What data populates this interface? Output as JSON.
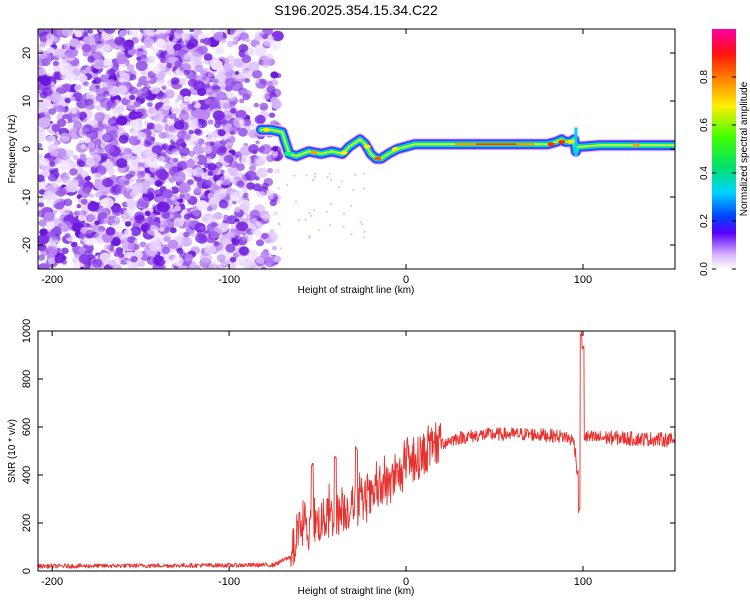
{
  "title": "S196.2025.354.15.34.C22",
  "colors": {
    "snr_line": "#e8302c",
    "spectrogram_noise": "#8a2be2",
    "axis": "#000000",
    "background": "#ffffff"
  },
  "chart_data": [
    {
      "type": "heatmap",
      "name": "spectrogram",
      "xlabel": "Height of straight line (km)",
      "ylabel": "Frequency (Hz)",
      "xlim": [
        -208,
        152
      ],
      "ylim": [
        -25,
        25
      ],
      "xticks": [
        -200,
        -100,
        0,
        100
      ],
      "xtick_labels": [
        "-200",
        "-100",
        "0",
        "100"
      ],
      "yticks": [
        -20,
        -10,
        0,
        10,
        20
      ],
      "ytick_labels": [
        "-20",
        "-10",
        "0",
        "10",
        "20"
      ],
      "noise_region_x": [
        -208,
        -72
      ],
      "ridge_x": [
        -82,
        -76,
        -70,
        -66,
        -62,
        -55,
        -48,
        -42,
        -36,
        -32,
        -28,
        -26,
        -23,
        -20,
        -17,
        -14,
        -10,
        -5,
        0,
        5,
        10,
        20,
        30,
        40,
        50,
        60,
        70,
        80,
        85,
        88,
        90,
        93,
        95,
        96,
        97,
        100,
        110,
        120,
        130,
        140,
        152
      ],
      "ridge_freq": [
        4,
        4,
        3.5,
        -1,
        -1.5,
        -0.5,
        -1,
        -0.5,
        -1,
        0.5,
        1.5,
        2,
        1,
        -1,
        -2,
        -2,
        -1,
        0,
        0.5,
        1,
        1,
        1,
        1,
        1,
        1,
        1,
        1,
        1,
        1.5,
        2,
        1.5,
        1.5,
        2,
        -0.5,
        0.5,
        0.5,
        0.8,
        0.8,
        0.8,
        0.8,
        0.8
      ],
      "colorbar": {
        "label": "Normalized spectral amplitude",
        "range": [
          0,
          1
        ],
        "ticks": [
          0.0,
          0.2,
          0.4,
          0.6,
          0.8
        ],
        "tick_labels": [
          "0.0",
          "0.2",
          "0.4",
          "0.6",
          "0.8"
        ]
      }
    },
    {
      "type": "line",
      "name": "snr",
      "xlabel": "Height of straight line (km)",
      "ylabel": "SNR (10 * v/v)",
      "xlim": [
        -208,
        152
      ],
      "ylim": [
        0,
        1000
      ],
      "xticks": [
        -200,
        -100,
        0,
        100
      ],
      "xtick_labels": [
        "-200",
        "-100",
        "0",
        "100"
      ],
      "yticks": [
        0,
        200,
        400,
        600,
        800,
        1000
      ],
      "ytick_labels": [
        "0",
        "200",
        "400",
        "600",
        "800",
        "1000"
      ],
      "envelope_x": [
        -208,
        -75,
        -65,
        -60,
        -55,
        -50,
        -45,
        -40,
        -35,
        -30,
        -25,
        -20,
        -15,
        -10,
        -5,
        0,
        5,
        10,
        15,
        20,
        25,
        30,
        40,
        50,
        60,
        70,
        80,
        90,
        95,
        97,
        99,
        100,
        105,
        110,
        120,
        130,
        140,
        152
      ],
      "envelope_y": [
        20,
        25,
        60,
        180,
        160,
        200,
        220,
        230,
        250,
        270,
        280,
        300,
        330,
        360,
        390,
        430,
        460,
        490,
        510,
        530,
        545,
        555,
        565,
        570,
        570,
        570,
        565,
        560,
        540,
        400,
        560,
        560,
        555,
        555,
        555,
        550,
        550,
        545
      ],
      "spikes": [
        {
          "x": -53,
          "y": 450
        },
        {
          "x": -40,
          "y": 480
        },
        {
          "x": -28,
          "y": 520
        },
        {
          "x": 98,
          "y": 260
        },
        {
          "x": 99,
          "y": 1000
        },
        {
          "x": 100,
          "y": 940
        }
      ]
    }
  ]
}
